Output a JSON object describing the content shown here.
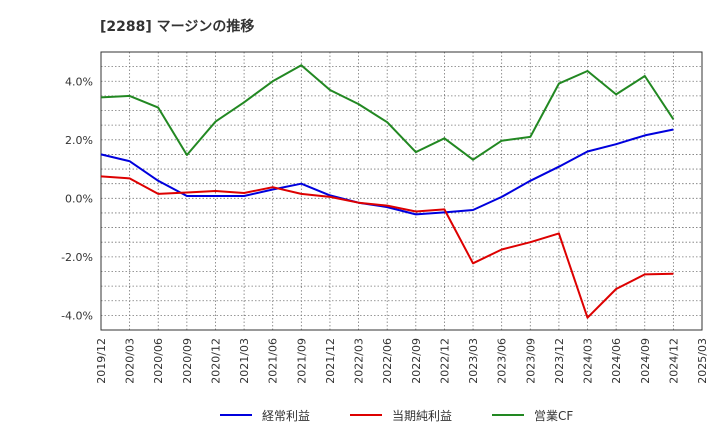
{
  "chart_data": {
    "type": "line",
    "title": "[2288]  マージンの推移",
    "x": [
      "2019/12",
      "2020/03",
      "2020/06",
      "2020/09",
      "2020/12",
      "2021/03",
      "2021/06",
      "2021/09",
      "2021/12",
      "2022/03",
      "2022/06",
      "2022/09",
      "2022/12",
      "2023/03",
      "2023/06",
      "2023/09",
      "2023/12",
      "2024/03",
      "2024/06",
      "2024/09",
      "2024/12",
      "2025/03"
    ],
    "ylim": [
      -4.5,
      5.0
    ],
    "yticks": [
      -4.0,
      -2.0,
      0.0,
      2.0,
      4.0
    ],
    "ytick_labels": [
      "-4.0%",
      "-2.0%",
      "0.0%",
      "2.0%",
      "4.0%"
    ],
    "grid": true,
    "legend_position": "bottom",
    "series": [
      {
        "name": "経常利益",
        "color": "#0000dd",
        "values": [
          1.5,
          1.27,
          0.6,
          0.08,
          0.08,
          0.08,
          0.3,
          0.5,
          0.1,
          -0.15,
          -0.3,
          -0.55,
          -0.48,
          -0.4,
          0.05,
          0.6,
          1.08,
          1.6,
          1.85,
          2.15,
          2.35,
          null
        ]
      },
      {
        "name": "当期純利益",
        "color": "#dd0000",
        "values": [
          0.75,
          0.68,
          0.15,
          0.2,
          0.25,
          0.18,
          0.38,
          0.15,
          0.05,
          -0.15,
          -0.25,
          -0.45,
          -0.38,
          -2.22,
          -1.75,
          -1.5,
          -1.2,
          -4.08,
          -3.1,
          -2.6,
          -2.58,
          null
        ]
      },
      {
        "name": "営業CF",
        "color": "#228822",
        "values": [
          3.45,
          3.5,
          3.1,
          1.48,
          2.62,
          3.28,
          4.0,
          4.55,
          3.7,
          3.22,
          2.6,
          1.58,
          2.05,
          1.32,
          1.97,
          2.1,
          3.92,
          4.35,
          3.55,
          4.18,
          2.7,
          null
        ]
      }
    ]
  }
}
